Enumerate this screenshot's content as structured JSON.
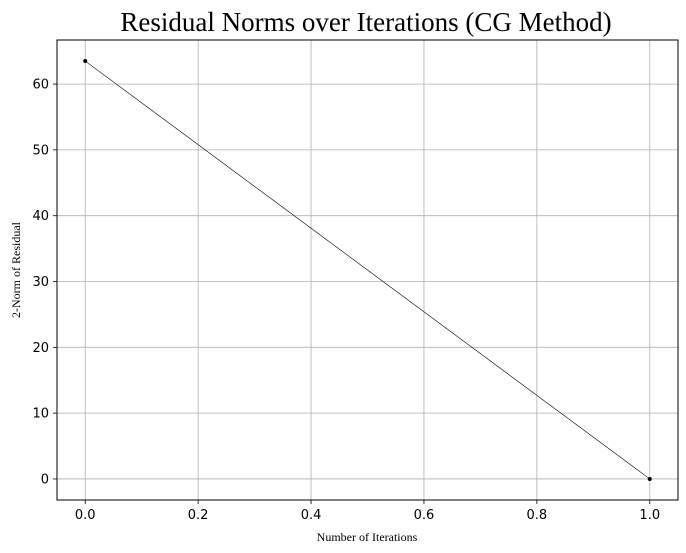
{
  "chart_data": {
    "type": "line",
    "title": "Residual Norms over Iterations (CG Method)",
    "xlabel": "Number of Iterations",
    "ylabel": "2-Norm of Residual",
    "x": [
      0,
      1
    ],
    "series": [
      {
        "values": [
          63.5,
          0
        ]
      }
    ],
    "xlim": [
      -0.05,
      1.05
    ],
    "ylim": [
      -3.2,
      66.7
    ],
    "xticks": [
      0.0,
      0.2,
      0.4,
      0.6,
      0.8,
      1.0
    ],
    "xtick_labels": [
      "0.0",
      "0.2",
      "0.4",
      "0.6",
      "0.8",
      "1.0"
    ],
    "yticks": [
      0,
      10,
      20,
      30,
      40,
      50,
      60
    ],
    "ytick_labels": [
      "0",
      "10",
      "20",
      "30",
      "40",
      "50",
      "60"
    ],
    "grid": true,
    "marker": "dot",
    "colors": {
      "line": "#000000",
      "grid": "#b0b0b0",
      "frame": "#000000"
    }
  }
}
